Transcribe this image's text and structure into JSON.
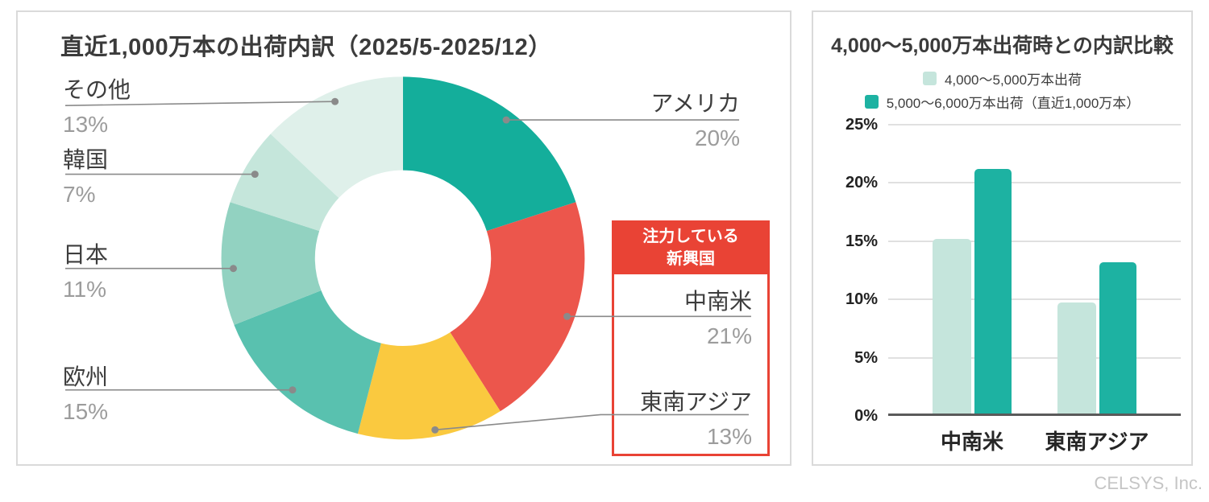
{
  "page": {
    "watermark": "CELSYS, Inc."
  },
  "left_panel": {
    "highlight_box": {
      "line1": "注力している",
      "line2": "新興国"
    }
  },
  "chart_data": [
    {
      "type": "pie",
      "subtype": "donut",
      "title": "直近1,000万本の出荷内訳（2025/5-2025/12）",
      "start_angle": "top",
      "direction": "clockwise",
      "annotation": "注力している新興国 (highlights 中南米 and 東南アジア)",
      "segments": [
        {
          "label": "アメリカ",
          "value": 20,
          "pct": "20%",
          "color": "#14ae9b",
          "highlighted": false
        },
        {
          "label": "中南米",
          "value": 21,
          "pct": "21%",
          "color": "#ec564c",
          "highlighted": true
        },
        {
          "label": "東南アジア",
          "value": 13,
          "pct": "13%",
          "color": "#fac93f",
          "highlighted": true
        },
        {
          "label": "欧州",
          "value": 15,
          "pct": "15%",
          "color": "#59c1af",
          "highlighted": false
        },
        {
          "label": "日本",
          "value": 11,
          "pct": "11%",
          "color": "#92d2c1",
          "highlighted": false
        },
        {
          "label": "韓国",
          "value": 7,
          "pct": "7%",
          "color": "#c5e6db",
          "highlighted": false
        },
        {
          "label": "その他",
          "value": 13,
          "pct": "13%",
          "color": "#dff0ea",
          "highlighted": false
        }
      ]
    },
    {
      "type": "bar",
      "title": "4,000〜5,000万本出荷時との内訳比較",
      "categories": [
        "中南米",
        "東南アジア"
      ],
      "series": [
        {
          "name": "4,000〜5,000万本出荷",
          "color": "#c5e5dc",
          "values": [
            15,
            9.5
          ]
        },
        {
          "name": "5,000〜6,000万本出荷（直近1,000万本）",
          "color": "#1db2a2",
          "values": [
            21,
            13
          ]
        }
      ],
      "ylabel": "",
      "xlabel": "",
      "ylim": [
        0,
        25
      ],
      "yticks": [
        "0%",
        "5%",
        "10%",
        "15%",
        "20%",
        "25%"
      ],
      "grid": true,
      "legend_position": "top"
    }
  ]
}
